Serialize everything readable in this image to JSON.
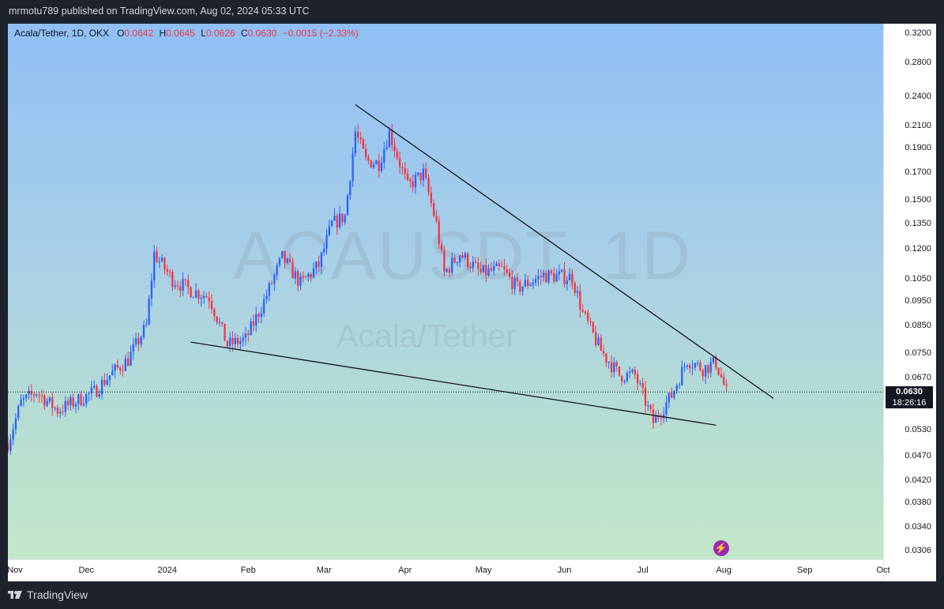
{
  "header": {
    "publish_text": "mrmotu789 published on TradingView.com, Aug 02, 2024 05:33 UTC"
  },
  "legend": {
    "symbol": "Acala/Tether, 1D, OKX",
    "open_label": "O",
    "open": "0.0642",
    "high_label": "H",
    "high": "0.0645",
    "low_label": "L",
    "low": "0.0626",
    "close_label": "C",
    "close": "0.0630",
    "change": "−0.0015 (−2.33%)"
  },
  "watermark": {
    "ticker": "ACAUSDT, 1D",
    "name": "Acala/Tether"
  },
  "current_price": {
    "price": "0.0630",
    "countdown": "18:26:16"
  },
  "footer": {
    "brand": "TradingView"
  },
  "colors": {
    "up": "#2962ff",
    "down": "#f23645",
    "trendline": "#131722"
  },
  "icons": {
    "bolt": "lightning-icon",
    "logo": "tradingview-logo-icon"
  },
  "chart_data": {
    "type": "candlestick",
    "title": "Acala/Tether, 1D, OKX",
    "y_scale": "log",
    "ylim": [
      0.0295,
      0.335
    ],
    "y_ticks": [
      0.32,
      0.28,
      0.24,
      0.21,
      0.19,
      0.17,
      0.15,
      0.135,
      0.12,
      0.105,
      0.095,
      0.085,
      0.075,
      0.067,
      0.053,
      0.047,
      0.042,
      0.038,
      0.034,
      0.0306
    ],
    "y_tick_labels": [
      "0.3200",
      "0.2800",
      "0.2400",
      "0.2100",
      "0.1900",
      "0.1700",
      "0.1500",
      "0.1350",
      "0.1200",
      "0.1050",
      "0.0950",
      "0.0850",
      "0.0750",
      "0.0670",
      "0.0530",
      "0.0470",
      "0.0420",
      "0.0380",
      "0.0340",
      "0.0306"
    ],
    "x_range": [
      "2023-11-01",
      "2024-10-01"
    ],
    "x_ticks": [
      {
        "label": "Nov",
        "date": "2023-11-01"
      },
      {
        "label": "Dec",
        "date": "2023-12-01"
      },
      {
        "label": "2024",
        "date": "2024-01-01"
      },
      {
        "label": "Feb",
        "date": "2024-02-01"
      },
      {
        "label": "Mar",
        "date": "2024-03-01"
      },
      {
        "label": "Apr",
        "date": "2024-04-01"
      },
      {
        "label": "May",
        "date": "2024-05-01"
      },
      {
        "label": "Jun",
        "date": "2024-06-01"
      },
      {
        "label": "Jul",
        "date": "2024-07-01"
      },
      {
        "label": "Aug",
        "date": "2024-08-01"
      },
      {
        "label": "Sep",
        "date": "2024-09-01"
      },
      {
        "label": "Oct",
        "date": "2024-10-01"
      }
    ],
    "closes": [
      {
        "date": "2023-11-01",
        "close": 0.05
      },
      {
        "date": "2023-11-06",
        "close": 0.06
      },
      {
        "date": "2023-11-12",
        "close": 0.063
      },
      {
        "date": "2023-11-20",
        "close": 0.058
      },
      {
        "date": "2023-11-26",
        "close": 0.06
      },
      {
        "date": "2023-12-04",
        "close": 0.063
      },
      {
        "date": "2023-12-10",
        "close": 0.068
      },
      {
        "date": "2023-12-17",
        "close": 0.073
      },
      {
        "date": "2023-12-24",
        "close": 0.085
      },
      {
        "date": "2023-12-27",
        "close": 0.118
      },
      {
        "date": "2024-01-03",
        "close": 0.105
      },
      {
        "date": "2024-01-10",
        "close": 0.1
      },
      {
        "date": "2024-01-17",
        "close": 0.097
      },
      {
        "date": "2024-01-24",
        "close": 0.078
      },
      {
        "date": "2024-01-31",
        "close": 0.08
      },
      {
        "date": "2024-02-07",
        "close": 0.095
      },
      {
        "date": "2024-02-14",
        "close": 0.116
      },
      {
        "date": "2024-02-21",
        "close": 0.103
      },
      {
        "date": "2024-02-28",
        "close": 0.112
      },
      {
        "date": "2024-03-04",
        "close": 0.135
      },
      {
        "date": "2024-03-09",
        "close": 0.14
      },
      {
        "date": "2024-03-13",
        "close": 0.205
      },
      {
        "date": "2024-03-17",
        "close": 0.18
      },
      {
        "date": "2024-03-22",
        "close": 0.178
      },
      {
        "date": "2024-03-26",
        "close": 0.205
      },
      {
        "date": "2024-04-02",
        "close": 0.16
      },
      {
        "date": "2024-04-08",
        "close": 0.17
      },
      {
        "date": "2024-04-13",
        "close": 0.135
      },
      {
        "date": "2024-04-16",
        "close": 0.108
      },
      {
        "date": "2024-04-22",
        "close": 0.118
      },
      {
        "date": "2024-04-30",
        "close": 0.108
      },
      {
        "date": "2024-05-08",
        "close": 0.11
      },
      {
        "date": "2024-05-14",
        "close": 0.101
      },
      {
        "date": "2024-05-24",
        "close": 0.107
      },
      {
        "date": "2024-06-04",
        "close": 0.106
      },
      {
        "date": "2024-06-08",
        "close": 0.09
      },
      {
        "date": "2024-06-15",
        "close": 0.076
      },
      {
        "date": "2024-06-22",
        "close": 0.068
      },
      {
        "date": "2024-06-28",
        "close": 0.068
      },
      {
        "date": "2024-07-05",
        "close": 0.055
      },
      {
        "date": "2024-07-12",
        "close": 0.062
      },
      {
        "date": "2024-07-18",
        "close": 0.073
      },
      {
        "date": "2024-07-24",
        "close": 0.07
      },
      {
        "date": "2024-07-29",
        "close": 0.072
      },
      {
        "date": "2024-08-02",
        "close": 0.063
      }
    ],
    "trendlines": [
      {
        "name": "upper",
        "from": {
          "date": "2024-03-13",
          "price": 0.232
        },
        "to": {
          "date": "2024-08-20",
          "price": 0.0612
        }
      },
      {
        "name": "lower",
        "from": {
          "date": "2024-01-10",
          "price": 0.079
        },
        "to": {
          "date": "2024-07-29",
          "price": 0.0542
        }
      }
    ],
    "last_price_line": 0.063
  }
}
